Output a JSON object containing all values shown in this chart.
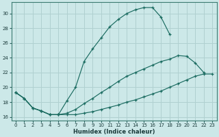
{
  "xlabel": "Humidex (Indice chaleur)",
  "bg_color": "#cce8e8",
  "grid_color": "#b0d0d0",
  "line_color": "#1a6b60",
  "xlim": [
    -0.5,
    23.5
  ],
  "ylim": [
    15.5,
    31.5
  ],
  "xticks": [
    0,
    1,
    2,
    3,
    4,
    5,
    6,
    7,
    8,
    9,
    10,
    11,
    12,
    13,
    14,
    15,
    16,
    17,
    18,
    19,
    20,
    21,
    22,
    23
  ],
  "yticks": [
    16,
    18,
    20,
    22,
    24,
    26,
    28,
    30
  ],
  "series1_x": [
    0,
    1,
    2,
    3,
    4,
    5,
    6,
    7,
    8,
    9,
    10,
    11,
    12,
    13,
    14,
    15,
    16,
    17,
    18
  ],
  "series1_y": [
    19.3,
    18.5,
    17.2,
    16.8,
    16.3,
    16.3,
    18.2,
    20.0,
    23.5,
    25.2,
    26.7,
    28.2,
    29.2,
    30.0,
    30.5,
    30.8,
    30.8,
    29.5,
    27.2
  ],
  "series2_x": [
    0,
    1,
    2,
    3,
    4,
    5,
    6,
    7,
    8,
    9,
    10,
    11,
    12,
    13,
    14,
    15,
    16,
    17,
    18,
    19,
    20,
    21,
    22
  ],
  "series2_y": [
    19.3,
    18.5,
    17.2,
    16.8,
    16.3,
    16.3,
    16.5,
    17.0,
    17.8,
    18.5,
    19.3,
    20.0,
    20.8,
    21.5,
    22.0,
    22.5,
    23.0,
    23.5,
    23.8,
    24.3,
    24.2,
    23.3,
    22.0
  ],
  "series3_x": [
    0,
    1,
    2,
    3,
    4,
    5,
    6,
    7,
    8,
    9,
    10,
    11,
    12,
    13,
    14,
    15,
    16,
    17,
    18,
    19,
    20,
    21,
    22,
    23
  ],
  "series3_y": [
    19.3,
    18.5,
    17.2,
    16.8,
    16.3,
    16.3,
    16.3,
    16.3,
    16.5,
    16.7,
    17.0,
    17.3,
    17.6,
    18.0,
    18.3,
    18.7,
    19.1,
    19.5,
    20.0,
    20.5,
    21.0,
    21.5,
    21.8,
    21.8
  ]
}
